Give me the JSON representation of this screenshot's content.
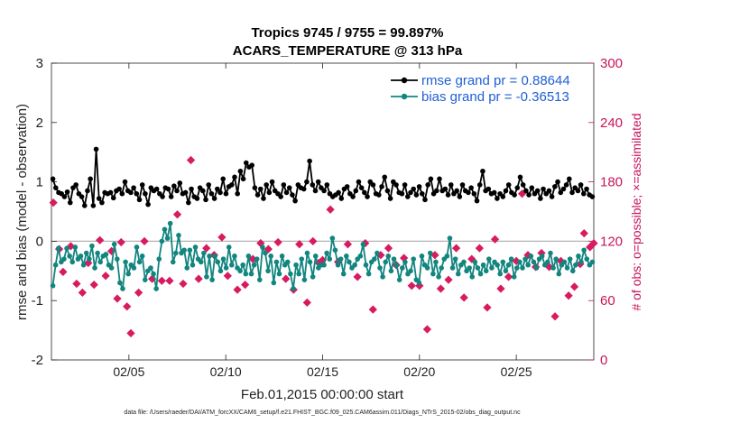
{
  "title_line1": "Tropics 9745 / 9755 = 99.897%",
  "title_line2": "ACARS_TEMPERATURE @ 313 hPa",
  "footer": "data file: /Users/raeder/DAI/ATM_forcXX/CAM6_setup/f.e21.FHIST_BGC.f09_025.CAM6assim.011/Diags_NTrS_2015-02/obs_diag_output.nc",
  "colors": {
    "rmse": "#000000",
    "bias": "#12857f",
    "obs": "#d81b60",
    "right_axis": "#c8145a",
    "zero_line": "#b3b3b3"
  },
  "chart_data": {
    "type": "line",
    "xlabel": "Feb.01,2015 00:00:00 start",
    "ylabel": "rmse and bias (model - observation)",
    "ylabel_right": "# of obs: o=possible; ×=assimilated",
    "xlim": [
      1.0,
      29.0
    ],
    "ylim": [
      -2,
      3
    ],
    "ylim_right": [
      0,
      300
    ],
    "yticks": [
      -2,
      -1,
      0,
      1,
      2,
      3
    ],
    "yticks_right": [
      0,
      60,
      120,
      180,
      240,
      300
    ],
    "xticks": [
      5,
      10,
      15,
      20,
      25
    ],
    "xtick_labels": [
      "02/05",
      "02/10",
      "02/15",
      "02/20",
      "02/25"
    ],
    "legend": {
      "position": "top-right",
      "rmse_label": "rmse grand pr = 0.88644",
      "bias_label": "bias grand pr = -0.36513"
    },
    "series": [
      {
        "name": "rmse",
        "marker": "circle",
        "values": [
          1.05,
          0.9,
          0.82,
          0.8,
          0.75,
          0.83,
          0.65,
          0.9,
          0.95,
          0.8,
          0.75,
          0.6,
          0.85,
          1.05,
          0.6,
          1.55,
          0.72,
          0.65,
          0.82,
          0.8,
          0.82,
          0.73,
          0.85,
          0.88,
          0.8,
          1.0,
          0.85,
          0.82,
          0.9,
          0.8,
          0.7,
          0.95,
          0.8,
          0.62,
          0.9,
          0.85,
          0.88,
          0.8,
          0.75,
          0.9,
          0.88,
          0.75,
          0.93,
          0.85,
          0.98,
          0.8,
          0.82,
          0.65,
          0.88,
          0.75,
          0.72,
          0.9,
          0.85,
          0.7,
          0.95,
          0.8,
          0.72,
          0.88,
          0.82,
          1.05,
          0.8,
          0.92,
          0.95,
          1.08,
          0.8,
          1.18,
          1.05,
          1.32,
          1.25,
          1.28,
          0.9,
          0.78,
          0.88,
          0.72,
          0.95,
          0.82,
          1.0,
          0.85,
          0.8,
          0.75,
          0.95,
          0.82,
          0.9,
          0.78,
          0.68,
          0.95,
          0.9,
          0.88,
          1.0,
          1.35,
          0.95,
          0.85,
          1.0,
          0.9,
          0.85,
          0.95,
          0.8,
          0.75,
          0.78,
          0.82,
          0.72,
          0.88,
          0.92,
          0.8,
          0.75,
          0.85,
          1.0,
          0.9,
          0.82,
          0.75,
          1.0,
          0.95,
          0.8,
          0.78,
          0.92,
          1.08,
          0.85,
          0.72,
          1.0,
          0.95,
          0.82,
          0.8,
          0.95,
          0.75,
          0.82,
          0.88,
          0.78,
          0.92,
          0.8,
          0.7,
          0.95,
          1.05,
          0.8,
          0.85,
          1.05,
          0.85,
          0.88,
          0.78,
          0.95,
          0.8,
          0.85,
          0.75,
          0.95,
          0.85,
          0.82,
          0.9,
          0.8,
          0.68,
          0.95,
          1.18,
          0.85,
          0.88,
          0.8,
          0.82,
          0.72,
          0.8,
          0.75,
          0.85,
          0.95,
          0.82,
          0.78,
          0.9,
          1.08,
          0.95,
          0.85,
          0.78,
          0.9,
          0.8,
          0.85,
          0.72,
          0.88,
          0.8,
          0.85,
          0.75,
          0.92,
          1.0,
          0.82,
          0.88,
          0.95,
          1.05,
          0.82,
          0.9,
          0.85,
          0.95,
          0.8,
          0.88,
          0.78,
          0.75
        ]
      },
      {
        "name": "bias",
        "marker": "circle",
        "values": [
          -0.75,
          -0.4,
          -0.12,
          -0.35,
          -0.3,
          -0.12,
          -0.25,
          -0.35,
          -0.1,
          -0.3,
          -0.25,
          -0.4,
          -0.2,
          -0.3,
          -0.08,
          -0.45,
          -0.2,
          -0.35,
          -0.25,
          -0.22,
          -0.4,
          -0.45,
          -0.05,
          -0.3,
          -0.7,
          -0.8,
          -0.35,
          -0.55,
          -0.4,
          -0.45,
          -0.1,
          -0.35,
          -0.25,
          -0.65,
          -0.5,
          -0.45,
          -0.55,
          -0.8,
          -0.3,
          0.0,
          0.2,
          0.05,
          0.3,
          -0.35,
          -0.2,
          0.1,
          -0.2,
          -0.15,
          -0.45,
          -0.15,
          -0.4,
          -0.1,
          -0.3,
          -0.35,
          -0.2,
          -0.6,
          -0.25,
          -0.65,
          -0.25,
          -0.35,
          -0.5,
          -0.3,
          -0.45,
          -0.1,
          -0.4,
          -0.25,
          -0.45,
          -0.5,
          -0.4,
          -0.55,
          -0.25,
          -0.55,
          -0.4,
          -0.3,
          -0.65,
          -0.1,
          -0.2,
          -0.5,
          -0.25,
          -0.7,
          -0.35,
          -0.55,
          -0.25,
          -0.4,
          -0.35,
          -0.55,
          -0.8,
          -0.4,
          -0.55,
          -0.3,
          -0.65,
          -0.2,
          -0.35,
          -0.6,
          -0.25,
          -0.45,
          -0.4,
          -0.4,
          -0.2,
          -0.3,
          0.05,
          -0.15,
          -0.4,
          -0.3,
          -0.55,
          -0.25,
          -0.35,
          -0.45,
          -0.4,
          -0.3,
          -0.25,
          -0.05,
          -0.4,
          -0.55,
          -0.35,
          -0.3,
          -0.2,
          -0.45,
          -0.6,
          -0.35,
          -0.25,
          -0.5,
          -0.3,
          -0.4,
          -0.65,
          -0.45,
          -0.35,
          -0.55,
          -0.5,
          -0.3,
          -0.65,
          -0.7,
          -0.25,
          -0.4,
          -0.45,
          -0.2,
          -0.55,
          -0.35,
          -0.6,
          -0.45,
          -0.3,
          -0.25,
          0.05,
          -0.45,
          -0.3,
          -0.55,
          -0.4,
          -0.35,
          -0.5,
          -0.45,
          -0.6,
          -0.35,
          -0.45,
          -0.55,
          -0.4,
          -0.5,
          -0.3,
          -0.45,
          -0.35,
          -0.4,
          -0.55,
          -0.35,
          -0.5,
          -0.4,
          -0.3,
          -0.6,
          -0.45,
          -0.35,
          -0.45,
          -0.3,
          -0.4,
          -0.25,
          -0.35,
          -0.45,
          -0.3,
          -0.25,
          -0.4,
          -0.35,
          -0.2,
          -0.45,
          -0.3,
          -0.55,
          -0.4,
          -0.35,
          -0.45,
          -0.3,
          -0.5,
          -0.4,
          -0.25,
          -0.35,
          -0.15,
          -0.3,
          -0.4,
          -0.35
        ]
      }
    ],
    "obs_assimilated": {
      "x": [
        1.1,
        1.4,
        1.6,
        2.0,
        2.3,
        2.6,
        2.9,
        3.2,
        3.5,
        3.8,
        4.1,
        4.4,
        4.6,
        4.9,
        5.1,
        5.5,
        5.8,
        6.2,
        6.7,
        7.1,
        7.5,
        7.8,
        8.2,
        8.6,
        9.0,
        9.4,
        9.8,
        10.1,
        10.6,
        11.0,
        11.4,
        11.8,
        12.2,
        12.7,
        13.1,
        13.5,
        13.8,
        14.2,
        14.5,
        14.8,
        15.0,
        15.4,
        15.8,
        16.3,
        16.8,
        17.2,
        17.6,
        18.0,
        18.4,
        18.8,
        19.2,
        19.6,
        20.0,
        20.4,
        20.8,
        21.1,
        21.5,
        21.9,
        22.3,
        22.7,
        23.1,
        23.5,
        23.9,
        24.2,
        24.6,
        25.0,
        25.3,
        25.6,
        26.0,
        26.3,
        26.7,
        27.0,
        27.3,
        27.7,
        28.0,
        28.3,
        28.5,
        28.8,
        29.0
      ],
      "values": [
        159,
        112,
        89,
        115,
        77,
        68,
        98,
        76,
        121,
        85,
        110,
        62,
        119,
        54,
        27,
        68,
        120,
        82,
        80,
        80,
        147,
        77,
        202,
        82,
        113,
        106,
        124,
        85,
        71,
        76,
        102,
        118,
        112,
        119,
        82,
        71,
        117,
        58,
        120,
        98,
        101,
        152,
        99,
        117,
        84,
        118,
        51,
        106,
        113,
        96,
        103,
        75,
        75,
        31,
        106,
        72,
        81,
        113,
        63,
        102,
        113,
        53,
        122,
        72,
        84,
        100,
        168,
        106,
        94,
        108,
        94,
        44,
        100,
        65,
        74,
        97,
        128,
        114,
        118
      ]
    }
  }
}
